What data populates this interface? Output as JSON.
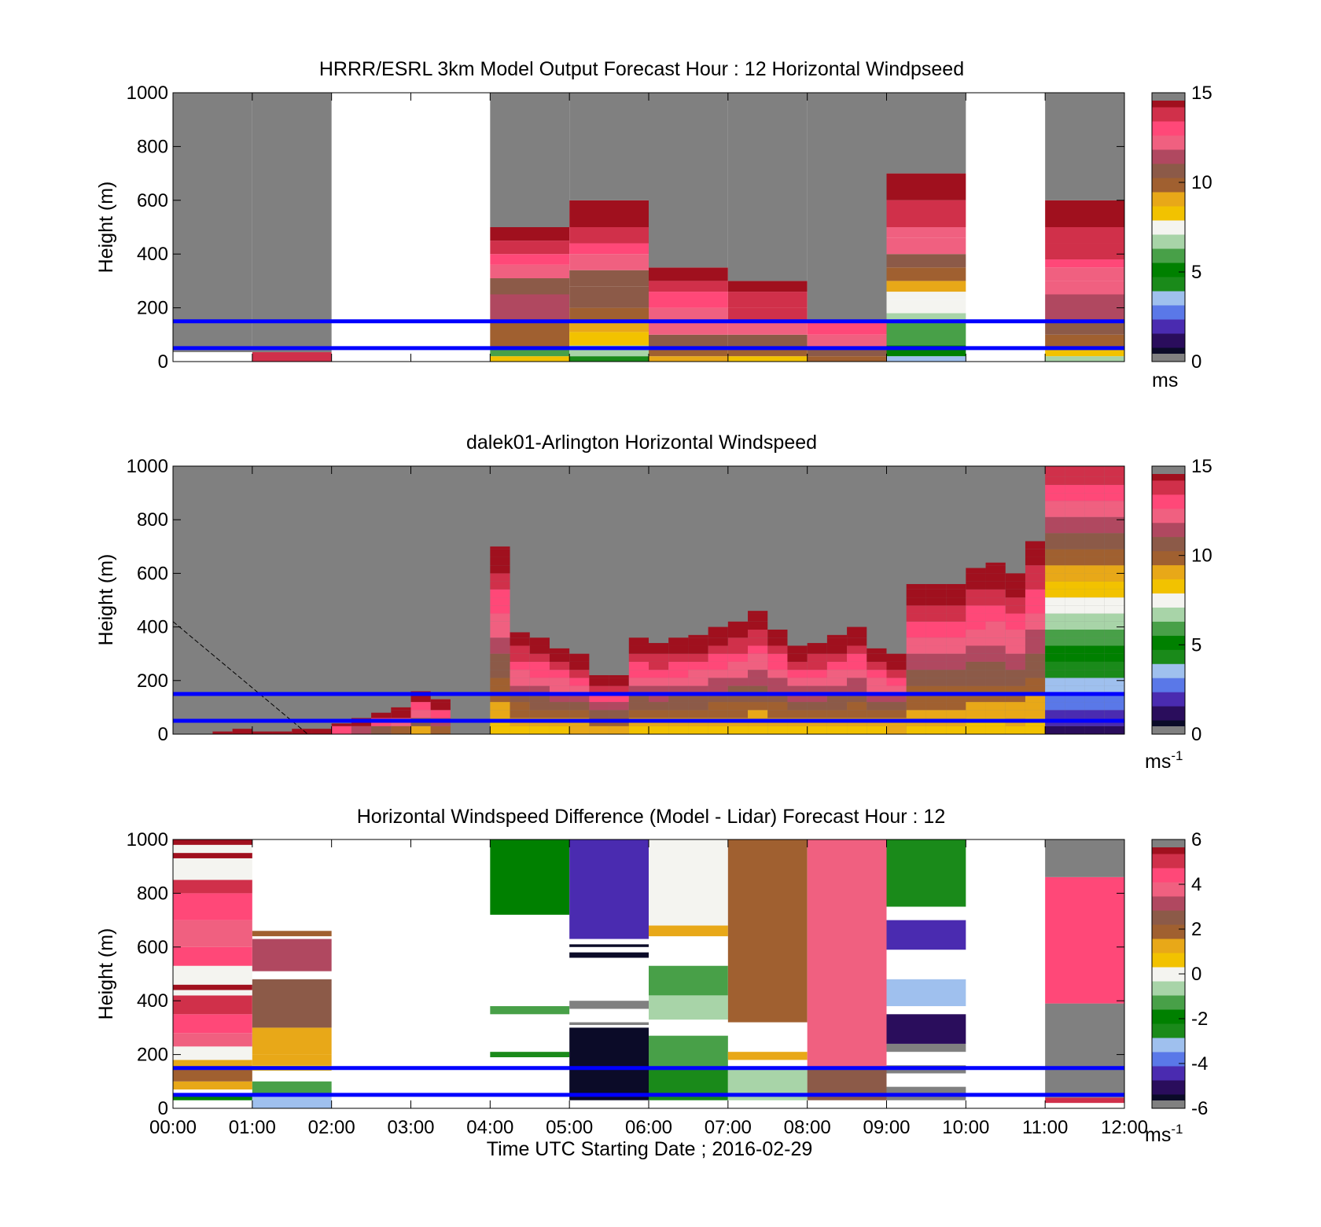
{
  "colors": {
    "missing": "#808080",
    "overlay_line": "#0000ff",
    "speed_colormap": [
      "#0b0b28",
      "#2a0d5c",
      "#4a2bb0",
      "#5a78e8",
      "#9fc0ee",
      "#1a8a1a",
      "#008000",
      "#48a048",
      "#a8d4a8",
      "#f4f4f0",
      "#f2c200",
      "#e8a818",
      "#a06030",
      "#8c5a48",
      "#b04860",
      "#f06080",
      "#ff4878",
      "#d0304a",
      "#a0101e"
    ],
    "diff_colormap": [
      "#0b0b28",
      "#2a0d5c",
      "#4a2bb0",
      "#5a78e8",
      "#9fc0ee",
      "#1a8a1a",
      "#008000",
      "#48a048",
      "#a8d4a8",
      "#f4f4f0",
      "#f2c200",
      "#e8a818",
      "#a06030",
      "#8c5a48",
      "#b04860",
      "#f06080",
      "#ff4878",
      "#d0304a",
      "#a0101e"
    ]
  },
  "chart_data": [
    {
      "type": "heatmap",
      "title": "HRRR/ESRL 3km Model Output   Forecast Hour : 12 Horizontal Windpseed",
      "xlabel": "",
      "ylabel": "Height (m)",
      "ylim": [
        0,
        1000
      ],
      "yticks": [
        0,
        200,
        400,
        600,
        800,
        1000
      ],
      "xlim_hours": [
        0,
        12
      ],
      "colorbar": {
        "min": 0,
        "max": 15,
        "ticks": [
          "0",
          "5",
          "10",
          "15"
        ],
        "unit": "ms",
        "unit_sup": ""
      },
      "overlay_lines_m": [
        150,
        50
      ],
      "columns": [
        {
          "t0": 0,
          "t1": 1,
          "top": 1000,
          "cells": [
            [
              35,
              0,
              13.0
            ],
            [
              35,
              1000,
              null
            ]
          ]
        },
        {
          "t0": 1,
          "t1": 2,
          "top": 1000,
          "cells": [
            [
              0,
              35,
              13.5
            ],
            [
              35,
              1000,
              null
            ]
          ]
        },
        {
          "t0": 2,
          "t1": 4,
          "blank": true
        },
        {
          "t0": 4,
          "t1": 5,
          "top": 1000,
          "cells": [
            [
              0,
              20,
              8
            ],
            [
              20,
              50,
              6
            ],
            [
              50,
              150,
              10
            ],
            [
              150,
              250,
              11.5
            ],
            [
              250,
              310,
              11
            ],
            [
              310,
              360,
              12
            ],
            [
              360,
              400,
              13
            ],
            [
              400,
              450,
              14
            ],
            [
              450,
              500,
              14.8
            ],
            [
              500,
              1000,
              null
            ]
          ]
        },
        {
          "t0": 5,
          "t1": 6,
          "top": 1000,
          "cells": [
            [
              0,
              20,
              4.5
            ],
            [
              20,
              60,
              7
            ],
            [
              60,
              110,
              8
            ],
            [
              110,
              150,
              9
            ],
            [
              150,
              200,
              10
            ],
            [
              200,
              280,
              10.5
            ],
            [
              280,
              340,
              11
            ],
            [
              340,
              400,
              12
            ],
            [
              400,
              440,
              13
            ],
            [
              440,
              500,
              14
            ],
            [
              500,
              600,
              14.8
            ],
            [
              600,
              1000,
              null
            ]
          ]
        },
        {
          "t0": 6,
          "t1": 7,
          "top": 1000,
          "cells": [
            [
              0,
              20,
              9
            ],
            [
              20,
              50,
              10
            ],
            [
              50,
              100,
              11
            ],
            [
              100,
              150,
              12
            ],
            [
              150,
              200,
              12.5
            ],
            [
              200,
              260,
              13
            ],
            [
              260,
              300,
              14
            ],
            [
              300,
              350,
              14.5
            ],
            [
              350,
              1000,
              null
            ]
          ]
        },
        {
          "t0": 7,
          "t1": 8,
          "top": 1000,
          "cells": [
            [
              0,
              20,
              8.5
            ],
            [
              20,
              50,
              9.5
            ],
            [
              50,
              100,
              11
            ],
            [
              100,
              150,
              12
            ],
            [
              150,
              200,
              13.5
            ],
            [
              200,
              260,
              13.8
            ],
            [
              260,
              300,
              14.5
            ],
            [
              300,
              1000,
              null
            ]
          ]
        },
        {
          "t0": 8,
          "t1": 9,
          "top": 1000,
          "cells": [
            [
              0,
              20,
              10
            ],
            [
              20,
              50,
              11
            ],
            [
              50,
              100,
              12
            ],
            [
              100,
              150,
              13
            ],
            [
              150,
              1000,
              null
            ]
          ]
        },
        {
          "t0": 9,
          "t1": 10,
          "top": 1000,
          "cells": [
            [
              0,
              20,
              3.5
            ],
            [
              20,
              60,
              5.5
            ],
            [
              60,
              150,
              6
            ],
            [
              150,
              180,
              7
            ],
            [
              180,
              230,
              7.2
            ],
            [
              230,
              260,
              7.5
            ],
            [
              260,
              300,
              9
            ],
            [
              300,
              350,
              9.8
            ],
            [
              350,
              400,
              10.5
            ],
            [
              400,
              460,
              12
            ],
            [
              460,
              500,
              12.5
            ],
            [
              500,
              600,
              13.5
            ],
            [
              600,
              700,
              14.8
            ],
            [
              700,
              1000,
              null
            ]
          ]
        },
        {
          "t0": 10,
          "t1": 11,
          "blank": true
        },
        {
          "t0": 11,
          "t1": 12,
          "top": 1000,
          "cells": [
            [
              0,
              20,
              6.5
            ],
            [
              20,
              50,
              8
            ],
            [
              50,
              100,
              10
            ],
            [
              100,
              150,
              11
            ],
            [
              150,
              250,
              11.8
            ],
            [
              250,
              300,
              12
            ],
            [
              300,
              350,
              12.5
            ],
            [
              350,
              380,
              13
            ],
            [
              380,
              440,
              13.5
            ],
            [
              440,
              500,
              14
            ],
            [
              500,
              600,
              14.5
            ],
            [
              600,
              1000,
              null
            ]
          ]
        }
      ]
    },
    {
      "type": "heatmap",
      "title": "dalek01-Arlington  Horizontal Windspeed",
      "xlabel": "",
      "ylabel": "Height (m)",
      "ylim": [
        0,
        1000
      ],
      "yticks": [
        0,
        200,
        400,
        600,
        800,
        1000
      ],
      "xlim_hours": [
        0,
        12
      ],
      "colorbar": {
        "min": 0,
        "max": 15,
        "ticks": [
          "0",
          "5",
          "10",
          "15"
        ],
        "unit": "ms",
        "unit_sup": "-1"
      },
      "overlay_lines_m": [
        150,
        50
      ],
      "lidar_columns": {
        "start_hour": 0,
        "step_hours": 0.25,
        "tops_m": [
          0,
          0,
          10,
          20,
          10,
          10,
          20,
          20,
          40,
          60,
          80,
          100,
          160,
          130,
          0,
          0,
          700,
          380,
          360,
          320,
          300,
          220,
          220,
          360,
          340,
          360,
          370,
          400,
          420,
          460,
          390,
          330,
          340,
          370,
          400,
          320,
          300,
          560,
          560,
          560,
          620,
          640,
          600,
          720,
          1000,
          1000,
          1000,
          1000
        ],
        "gate_m": 30
      },
      "annotations": [
        {
          "type": "dashed_line",
          "from": [
            0,
            420
          ],
          "to": [
            1.7,
            0
          ]
        }
      ]
    },
    {
      "type": "heatmap",
      "title": "Horizontal Windspeed Difference (Model - Lidar) Forecast Hour : 12",
      "xlabel": "Time UTC  Starting Date ; 2016-02-29",
      "ylabel": "Height (m)",
      "ylim": [
        0,
        1000
      ],
      "yticks": [
        0,
        200,
        400,
        600,
        800,
        1000
      ],
      "xlim_hours": [
        0,
        12
      ],
      "xticks": [
        "00:00",
        "01:00",
        "02:00",
        "03:00",
        "04:00",
        "05:00",
        "06:00",
        "07:00",
        "08:00",
        "09:00",
        "10:00",
        "11:00",
        "12:00"
      ],
      "colorbar": {
        "min": -6,
        "max": 6,
        "ticks": [
          "-6",
          "-4",
          "-2",
          "0",
          "2",
          "4",
          "6"
        ],
        "unit": "ms",
        "unit_sup": "-1"
      },
      "overlay_lines_m": [
        150,
        50
      ],
      "columns": [
        {
          "t0": 0,
          "t1": 1,
          "cells": [
            [
              30,
              50,
              -2
            ],
            [
              70,
              100,
              1
            ],
            [
              100,
              150,
              2
            ],
            [
              150,
              180,
              1.5
            ],
            [
              180,
              230,
              0.2
            ],
            [
              230,
              280,
              3.5
            ],
            [
              280,
              350,
              4.5
            ],
            [
              350,
              420,
              5
            ],
            [
              420,
              440,
              0.2
            ],
            [
              440,
              460,
              5.5
            ],
            [
              460,
              530,
              0.2
            ],
            [
              530,
              600,
              4.5
            ],
            [
              600,
              700,
              3.8
            ],
            [
              700,
              800,
              4.2
            ],
            [
              800,
              850,
              5
            ],
            [
              850,
              870,
              0.2
            ],
            [
              870,
              930,
              0.2
            ],
            [
              930,
              950,
              5.5
            ],
            [
              950,
              980,
              0.2
            ],
            [
              980,
              1000,
              5.8
            ]
          ]
        },
        {
          "t0": 1,
          "t1": 2,
          "cells": [
            [
              0,
              50,
              -3
            ],
            [
              50,
              100,
              -1.5
            ],
            [
              140,
              160,
              0.5
            ],
            [
              160,
              200,
              1.2
            ],
            [
              200,
              300,
              1.5
            ],
            [
              300,
              480,
              2.5
            ],
            [
              510,
              630,
              3
            ],
            [
              640,
              660,
              2
            ]
          ]
        },
        {
          "t0": 2,
          "t1": 4,
          "cells": []
        },
        {
          "t0": 4,
          "t1": 5,
          "cells": [
            [
              190,
              210,
              -2.5
            ],
            [
              350,
              380,
              -1
            ],
            [
              720,
              1000,
              -2.2
            ]
          ]
        },
        {
          "t0": 5,
          "t1": 6,
          "cells": [
            [
              30,
              300,
              -5.5
            ],
            [
              310,
              320,
              null
            ],
            [
              370,
              400,
              null
            ],
            [
              560,
              580,
              -6
            ],
            [
              600,
              610,
              -5.5
            ],
            [
              630,
              1000,
              -4.5
            ]
          ]
        },
        {
          "t0": 6,
          "t1": 7,
          "cells": [
            [
              30,
              150,
              -2.5
            ],
            [
              150,
              270,
              -1
            ],
            [
              330,
              420,
              -0.5
            ],
            [
              420,
              530,
              -1.5
            ],
            [
              640,
              680,
              1
            ],
            [
              680,
              1000,
              0.3
            ]
          ]
        },
        {
          "t0": 7,
          "t1": 8,
          "cells": [
            [
              30,
              150,
              -0.8
            ],
            [
              180,
              210,
              1
            ],
            [
              320,
              1000,
              2
            ]
          ]
        },
        {
          "t0": 8,
          "t1": 9,
          "cells": [
            [
              30,
              150,
              2.5
            ],
            [
              150,
              1000,
              4
            ]
          ]
        },
        {
          "t0": 9,
          "t1": 10,
          "cells": [
            [
              30,
              80,
              null
            ],
            [
              130,
              160,
              null
            ],
            [
              210,
              240,
              null
            ],
            [
              240,
              350,
              -4.8
            ],
            [
              380,
              480,
              -3
            ],
            [
              590,
              700,
              -4.5
            ],
            [
              750,
              1000,
              -2.5
            ]
          ]
        },
        {
          "t0": 10,
          "t1": 11,
          "cells": []
        },
        {
          "t0": 11,
          "t1": 12,
          "cells": [
            [
              20,
              40,
              5
            ],
            [
              40,
              390,
              null
            ],
            [
              390,
              860,
              4.2
            ],
            [
              860,
              1000,
              null
            ]
          ]
        }
      ]
    }
  ]
}
